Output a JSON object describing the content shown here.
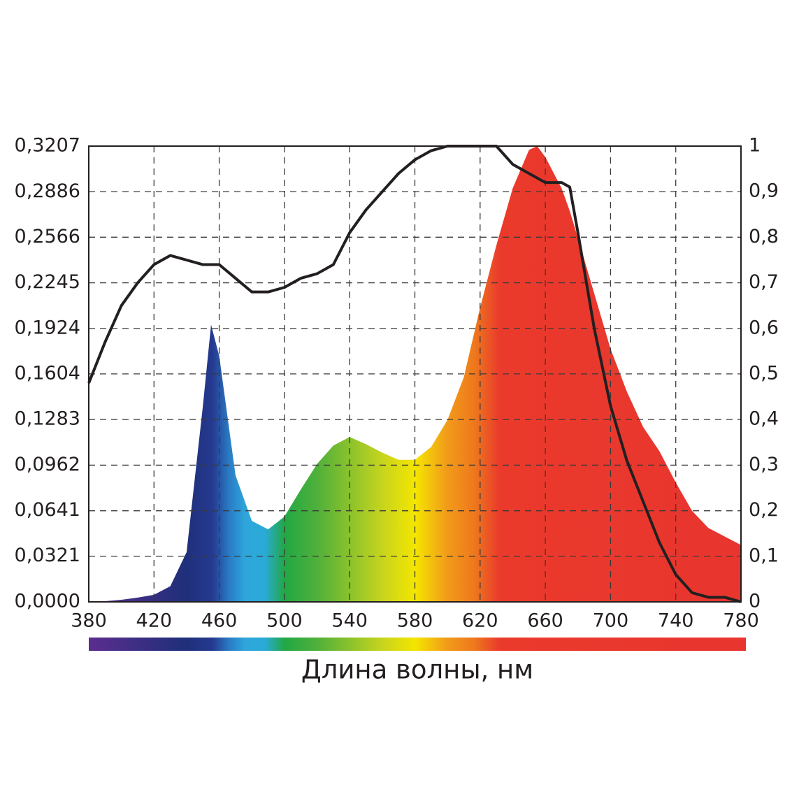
{
  "chart_data": {
    "type": "area-line",
    "x_label": "Длина волны, нм",
    "x": [
      380,
      390,
      400,
      410,
      420,
      430,
      440,
      450,
      455,
      460,
      470,
      480,
      490,
      500,
      510,
      520,
      530,
      540,
      550,
      560,
      570,
      580,
      590,
      600,
      610,
      620,
      630,
      640,
      650,
      655,
      660,
      670,
      675,
      680,
      690,
      700,
      710,
      720,
      730,
      740,
      750,
      760,
      770,
      780
    ],
    "series": [
      {
        "type": "area",
        "axis": "y",
        "values": [
          0,
          0.0005,
          0.0015,
          0.003,
          0.005,
          0.011,
          0.035,
          0.138,
          0.195,
          0.173,
          0.089,
          0.057,
          0.051,
          0.06,
          0.079,
          0.097,
          0.11,
          0.116,
          0.111,
          0.105,
          0.1,
          0.1,
          0.109,
          0.128,
          0.158,
          0.207,
          0.251,
          0.291,
          0.318,
          0.3207,
          0.313,
          0.291,
          0.275,
          0.256,
          0.217,
          0.178,
          0.148,
          0.123,
          0.106,
          0.084,
          0.064,
          0.052,
          0.046,
          0.04
        ]
      },
      {
        "type": "line",
        "axis": "y2",
        "color": "#231f20",
        "values": [
          0.48,
          0.57,
          0.65,
          0.7,
          0.74,
          0.76,
          0.75,
          0.74,
          0.74,
          0.74,
          0.71,
          0.68,
          0.68,
          0.69,
          0.71,
          0.72,
          0.74,
          0.81,
          0.86,
          0.9,
          0.94,
          0.97,
          0.99,
          1,
          1,
          1,
          1,
          0.96,
          0.94,
          0.93,
          0.92,
          0.92,
          0.91,
          0.81,
          0.6,
          0.43,
          0.31,
          0.22,
          0.13,
          0.06,
          0.02,
          0.01,
          0.01,
          0
        ]
      }
    ],
    "xlim": [
      380,
      780
    ],
    "xticks": [
      380,
      420,
      460,
      500,
      540,
      580,
      620,
      660,
      700,
      740,
      780
    ],
    "ylim": [
      0,
      0.3207
    ],
    "yticks": [
      {
        "value": 0,
        "label": "0,0000"
      },
      {
        "value": 0.0321,
        "label": "0,0321"
      },
      {
        "value": 0.0641,
        "label": "0,0641"
      },
      {
        "value": 0.0962,
        "label": "0,0962"
      },
      {
        "value": 0.1283,
        "label": "0,1283"
      },
      {
        "value": 0.1604,
        "label": "0,1604"
      },
      {
        "value": 0.1924,
        "label": "0,1924"
      },
      {
        "value": 0.2245,
        "label": "0,2245"
      },
      {
        "value": 0.2566,
        "label": "0,2566"
      },
      {
        "value": 0.2886,
        "label": "0,2886"
      },
      {
        "value": 0.3207,
        "label": "0,3207"
      }
    ],
    "y2lim": [
      0,
      1
    ],
    "y2ticks": [
      0,
      {
        "value": 0.1,
        "label": "0,1"
      },
      {
        "value": 0.2,
        "label": "0,2"
      },
      {
        "value": 0.3,
        "label": "0,3"
      },
      {
        "value": 0.4,
        "label": "0,4"
      },
      {
        "value": 0.5,
        "label": "0,5"
      },
      {
        "value": 0.6,
        "label": "0,6"
      },
      {
        "value": 0.7,
        "label": "0,7"
      },
      {
        "value": 0.8,
        "label": "0,8"
      },
      {
        "value": 0.9,
        "label": "0,9"
      },
      1
    ],
    "grid": true
  }
}
